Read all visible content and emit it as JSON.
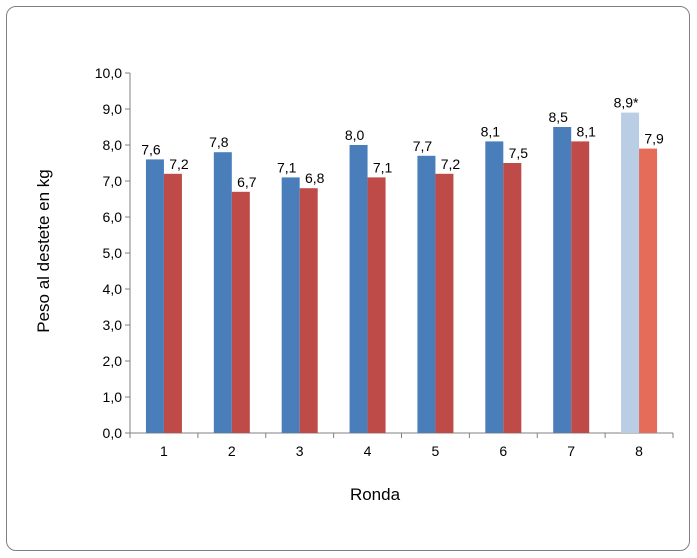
{
  "chart_data": {
    "type": "bar",
    "categories": [
      "1",
      "2",
      "3",
      "4",
      "5",
      "6",
      "7",
      "8"
    ],
    "series": [
      {
        "values": [
          7.6,
          7.8,
          7.1,
          8.0,
          7.7,
          8.1,
          8.5,
          8.9
        ],
        "labels": [
          "7,6",
          "7,8",
          "7,1",
          "8,0",
          "7,7",
          "8,1",
          "8,5",
          "8,9*"
        ],
        "color": "#4a7ebb",
        "highlight_color": "#b9cde5"
      },
      {
        "values": [
          7.2,
          6.7,
          6.8,
          7.1,
          7.2,
          7.5,
          8.1,
          7.9
        ],
        "labels": [
          "7,2",
          "6,7",
          "6,8",
          "7,1",
          "7,2",
          "7,5",
          "8,1",
          "7,9"
        ],
        "color": "#be4b48",
        "highlight_color": "#e46c59"
      }
    ],
    "highlight_category": "8",
    "xlabel": "Ronda",
    "ylabel": "Peso al destete en kg",
    "ylim": [
      0,
      10
    ],
    "yticks": [
      0,
      1,
      2,
      3,
      4,
      5,
      6,
      7,
      8,
      9,
      10
    ],
    "ytick_labels": [
      "0,0",
      "1,0",
      "2,0",
      "3,0",
      "4,0",
      "5,0",
      "6,0",
      "7,0",
      "8,0",
      "9,0",
      "10,0"
    ],
    "grid": false,
    "legend": "none"
  }
}
